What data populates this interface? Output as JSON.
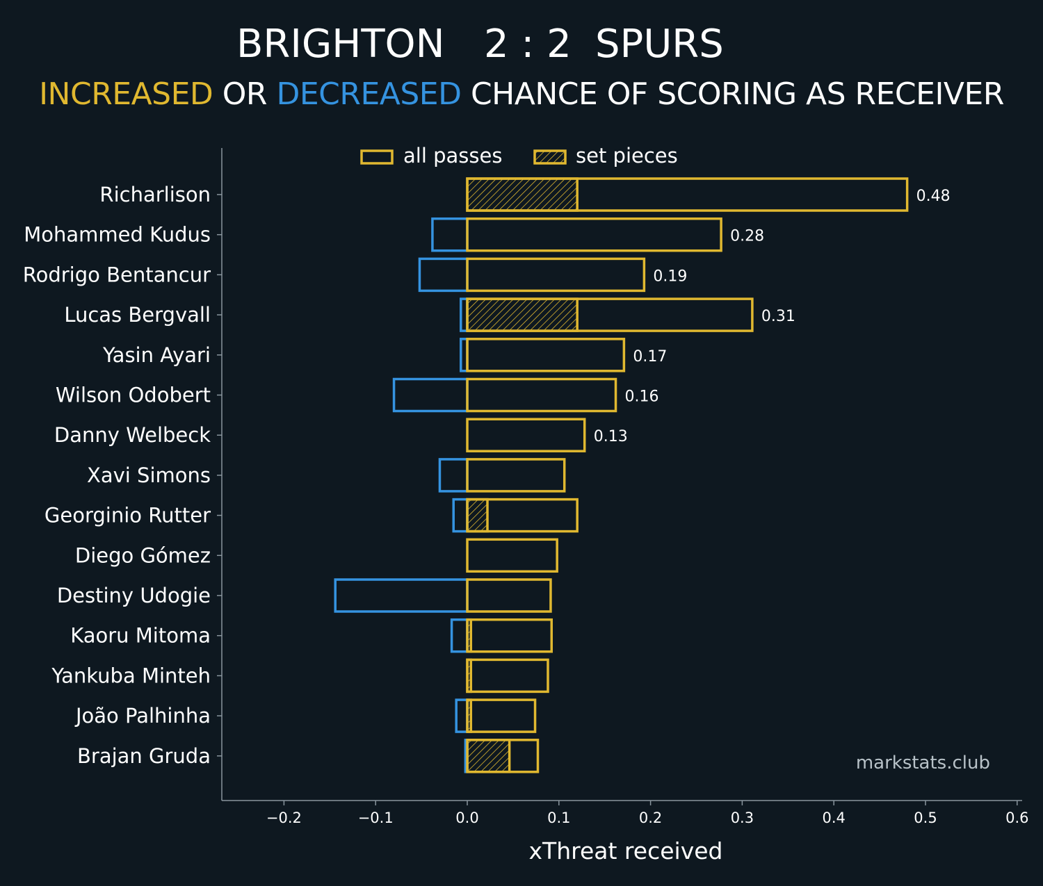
{
  "header": {
    "home_team": "BRIGHTON",
    "score": "2 : 2",
    "away_team": "SPURS",
    "subtitle_increased": "INCREASED",
    "subtitle_or": " OR ",
    "subtitle_decreased": "DECREASED",
    "subtitle_rest": " CHANCE OF SCORING AS RECEIVER"
  },
  "credit": "markstats.club",
  "colors": {
    "increased": "#e0b830",
    "decreased": "#3593e0",
    "background": "#0e1820",
    "axis": "#8a969e"
  },
  "chart_data": {
    "type": "bar",
    "orientation": "horizontal",
    "xlabel": "xThreat received",
    "xlim": [
      -0.27,
      0.6
    ],
    "xticks": [
      -0.2,
      -0.1,
      0.0,
      0.1,
      0.2,
      0.3,
      0.4,
      0.5,
      0.6
    ],
    "xtick_labels": [
      "−0.2",
      "−0.1",
      "0.0",
      "0.1",
      "0.2",
      "0.3",
      "0.4",
      "0.5",
      "0.6"
    ],
    "legend": {
      "position": "top-center",
      "entries": [
        "all passes",
        "set pieces"
      ]
    },
    "players": [
      {
        "name": "Richarlison",
        "positive": 0.48,
        "negative": 0.0,
        "set_piece": 0.12,
        "label": "0.48"
      },
      {
        "name": "Mohammed Kudus",
        "positive": 0.277,
        "negative": -0.038,
        "set_piece": 0.0,
        "label": "0.28"
      },
      {
        "name": "Rodrigo Bentancur",
        "positive": 0.193,
        "negative": -0.052,
        "set_piece": 0.0,
        "label": "0.19"
      },
      {
        "name": "Lucas Bergvall",
        "positive": 0.311,
        "negative": -0.007,
        "set_piece": 0.12,
        "label": "0.31"
      },
      {
        "name": "Yasin Ayari",
        "positive": 0.171,
        "negative": -0.007,
        "set_piece": 0.0,
        "label": "0.17"
      },
      {
        "name": "Wilson Odobert",
        "positive": 0.162,
        "negative": -0.08,
        "set_piece": 0.0,
        "label": "0.16"
      },
      {
        "name": "Danny Welbeck",
        "positive": 0.128,
        "negative": 0.0,
        "set_piece": 0.0,
        "label": "0.13"
      },
      {
        "name": "Xavi Simons",
        "positive": 0.106,
        "negative": -0.03,
        "set_piece": 0.0,
        "label": ""
      },
      {
        "name": "Georginio Rutter",
        "positive": 0.12,
        "negative": -0.015,
        "set_piece": 0.022,
        "label": ""
      },
      {
        "name": "Diego Gómez",
        "positive": 0.098,
        "negative": 0.0,
        "set_piece": 0.0,
        "label": ""
      },
      {
        "name": "Destiny Udogie",
        "positive": 0.091,
        "negative": -0.144,
        "set_piece": 0.0,
        "label": ""
      },
      {
        "name": "Kaoru Mitoma",
        "positive": 0.092,
        "negative": -0.017,
        "set_piece": 0.004,
        "label": ""
      },
      {
        "name": "Yankuba Minteh",
        "positive": 0.088,
        "negative": 0.0,
        "set_piece": 0.004,
        "label": ""
      },
      {
        "name": "João Palhinha",
        "positive": 0.074,
        "negative": -0.012,
        "set_piece": 0.004,
        "label": ""
      },
      {
        "name": "Brajan Gruda",
        "positive": 0.077,
        "negative": -0.002,
        "set_piece": 0.046,
        "label": ""
      }
    ]
  }
}
